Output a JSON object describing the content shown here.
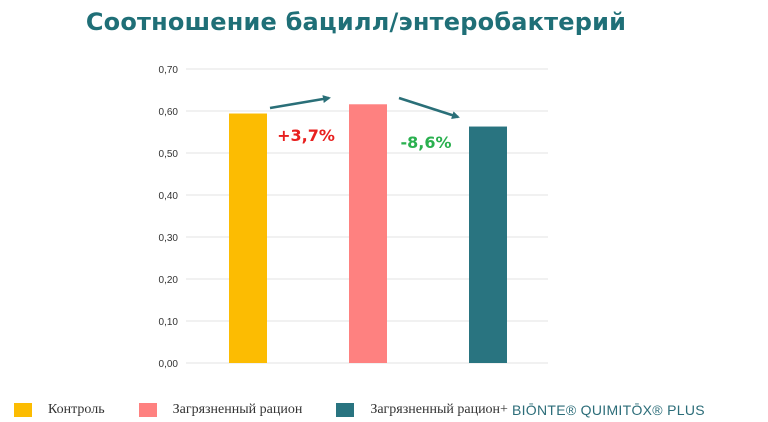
{
  "colors": {
    "title": "#1f6f77",
    "grid": "#e3e3e3",
    "axis_text": "#333333",
    "increase": "#e8201f",
    "decrease": "#2ab04f",
    "arrow": "#2a6f78"
  },
  "chart_data": {
    "type": "bar",
    "title": "Соотношение бацилл/энтеробактерий",
    "xlabel": "",
    "ylabel": "",
    "ylim": [
      0,
      0.7
    ],
    "yticks": [
      "0,70",
      "0,60",
      "0,50",
      "0,40",
      "0,30",
      "0,20",
      "0,10",
      "0,00"
    ],
    "grid": true,
    "categories": [
      "Контроль",
      "Загрязненный рацион",
      "Загрязненный рацион+ BIŌNTE® QUIMITŌX® PLUS"
    ],
    "values": [
      0.594,
      0.616,
      0.563
    ],
    "colors": [
      "#fcbc02",
      "#fe8180",
      "#297480"
    ],
    "annotations": [
      {
        "text": "+3,7%",
        "from": 0,
        "to": 1,
        "color": "#e8201f"
      },
      {
        "text": "-8,6%",
        "from": 1,
        "to": 2,
        "color": "#2ab04f"
      }
    ],
    "legend_position": "bottom"
  },
  "legend": [
    {
      "label": "Контроль",
      "brand": "",
      "color": "#fcbc02"
    },
    {
      "label": "Загрязненный рацион",
      "brand": "",
      "color": "#fe8180"
    },
    {
      "label": "Загрязненный рацион+",
      "brand": "BIŌNTE® QUIMITŌX® PLUS",
      "color": "#297480"
    }
  ]
}
